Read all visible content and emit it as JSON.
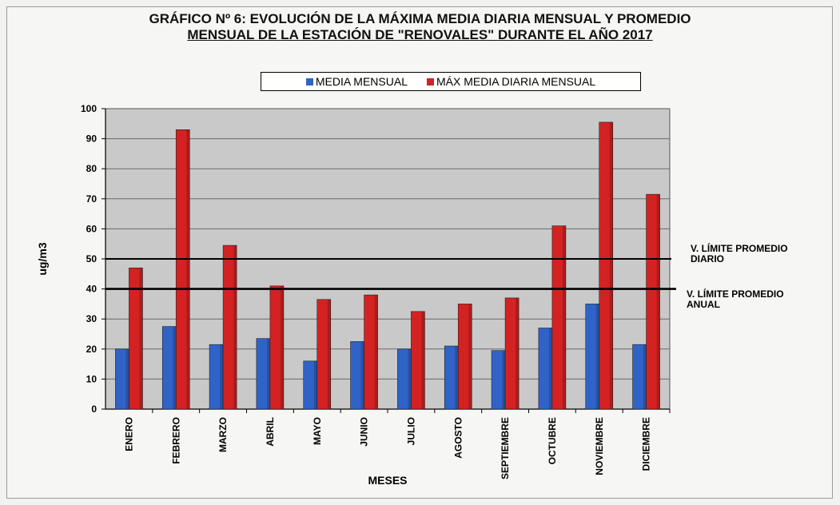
{
  "title_line1": "GRÁFICO Nº 6: EVOLUCIÓN DE LA MÁXIMA MEDIA DIARIA MENSUAL Y PROMEDIO",
  "title_line2": "MENSUAL DE LA ESTACIÓN DE \"RENOVALES\" DURANTE EL AÑO 2017",
  "chart_data": {
    "type": "bar",
    "title": "GRÁFICO Nº 6: EVOLUCIÓN DE LA MÁXIMA MEDIA DIARIA MENSUAL Y PROMEDIO MENSUAL DE LA ESTACIÓN DE \"RENOVALES\" DURANTE EL AÑO 2017",
    "xlabel": "MESES",
    "ylabel": "ug/m3",
    "ylim": [
      0,
      100
    ],
    "yticks": [
      0,
      10,
      20,
      30,
      40,
      50,
      60,
      70,
      80,
      90,
      100
    ],
    "grid": true,
    "legend_position": "top",
    "categories": [
      "ENERO",
      "FEBRERO",
      "MARZO",
      "ABRIL",
      "MAYO",
      "JUNIO",
      "JULIO",
      "AGOSTO",
      "SEPTIEMBRE",
      "OCTUBRE",
      "NOVIEMBRE",
      "DICIEMBRE"
    ],
    "series": [
      {
        "name": "MEDIA MENSUAL",
        "color": "#2f63c8",
        "values": [
          20,
          27.5,
          21.5,
          23.5,
          16,
          22.5,
          20,
          21,
          19.5,
          27,
          35,
          21.5
        ]
      },
      {
        "name": "MÁX MEDIA DIARIA MENSUAL",
        "color": "#d42222",
        "values": [
          47,
          93,
          54.5,
          41,
          36.5,
          38,
          32.5,
          35,
          37,
          61,
          95.5,
          71.5
        ]
      }
    ],
    "reference_lines": [
      {
        "label_line1": "V. LÍMITE PROMEDIO",
        "label_line2": "DIARIO",
        "value": 50
      },
      {
        "label_line1": "V. LÍMITE PROMEDIO",
        "label_line2": "ANUAL",
        "value": 40
      }
    ]
  }
}
